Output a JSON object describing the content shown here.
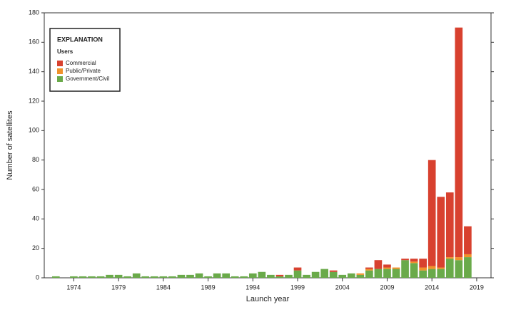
{
  "chart_data": {
    "type": "stacked_bar",
    "x_label": "Launch year",
    "y_label": "Number of satellites",
    "legend": {
      "title": "EXPLANATION",
      "subtitle": "Users",
      "position": "upper left"
    },
    "x": [
      1972,
      1973,
      1974,
      1975,
      1976,
      1977,
      1978,
      1979,
      1980,
      1981,
      1982,
      1983,
      1984,
      1985,
      1986,
      1987,
      1988,
      1989,
      1990,
      1991,
      1992,
      1993,
      1994,
      1995,
      1996,
      1997,
      1998,
      1999,
      2000,
      2001,
      2002,
      2003,
      2004,
      2005,
      2006,
      2007,
      2008,
      2009,
      2010,
      2011,
      2012,
      2013,
      2014,
      2015,
      2016,
      2017,
      2018
    ],
    "series": [
      {
        "name": "Commercial",
        "color": "#d8412f",
        "values": [
          0,
          0,
          0,
          0,
          0,
          0,
          0,
          0,
          0,
          0,
          0,
          0,
          0,
          0,
          0,
          0,
          0,
          0,
          0,
          0,
          0,
          0,
          0,
          0,
          0,
          1,
          0,
          2,
          0,
          0,
          0,
          1,
          0,
          0,
          0,
          1,
          6,
          2,
          0,
          1,
          2,
          6,
          72,
          48,
          44,
          156,
          19
        ]
      },
      {
        "name": "Public/Private",
        "color": "#f0922b",
        "values": [
          0,
          0,
          0,
          0,
          0,
          0,
          0,
          0,
          0,
          0,
          0,
          0,
          0,
          0,
          0,
          0,
          0,
          0,
          0,
          0,
          0,
          0,
          0,
          0,
          0,
          0,
          0,
          0,
          0,
          0,
          0,
          0,
          0,
          0,
          1,
          1,
          0,
          1,
          1,
          0,
          1,
          2,
          2,
          1,
          1,
          2,
          2
        ]
      },
      {
        "name": "Government/Civil",
        "color": "#6aaa4a",
        "values": [
          1,
          0,
          1,
          1,
          1,
          1,
          2,
          2,
          1,
          3,
          1,
          1,
          1,
          1,
          2,
          2,
          3,
          1,
          3,
          3,
          1,
          1,
          3,
          4,
          2,
          1,
          2,
          5,
          2,
          4,
          6,
          4,
          2,
          3,
          2,
          5,
          6,
          6,
          6,
          12,
          10,
          5,
          6,
          6,
          13,
          12,
          14
        ]
      }
    ],
    "xlim": [
      1970.7,
      2020.6
    ],
    "xticks": [
      1974,
      1979,
      1984,
      1989,
      1994,
      1999,
      2004,
      2009,
      2014,
      2019
    ],
    "ylim": [
      0,
      180
    ],
    "yticks": [
      0,
      20,
      40,
      60,
      80,
      100,
      120,
      140,
      160,
      180
    ]
  }
}
